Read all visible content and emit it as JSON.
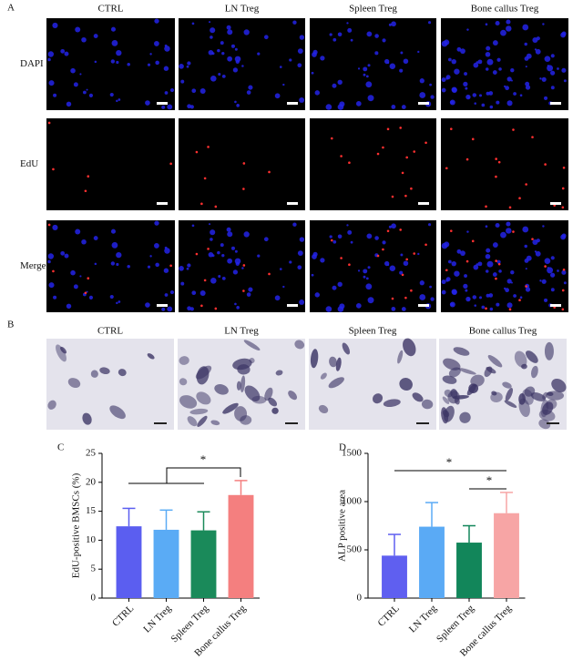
{
  "panel_a": {
    "label": "A",
    "columns": [
      "CTRL",
      "LN Treg",
      "Spleen Treg",
      "Bone callus Treg"
    ],
    "rows": [
      "DAPI",
      "EdU",
      "Merge"
    ]
  },
  "panel_b": {
    "label": "B",
    "columns": [
      "CTRL",
      "LN Treg",
      "Spleen Treg",
      "Bone callus Treg"
    ]
  },
  "chart_data": [
    {
      "type": "bar",
      "panel": "C",
      "ylabel": "EdU-positive BMSCs (%)",
      "categories": [
        "CTRL",
        "LN Treg",
        "Spleen Treg",
        "Bone callus Treg"
      ],
      "values": [
        12.4,
        11.8,
        11.7,
        17.8
      ],
      "errors": [
        3.1,
        3.4,
        3.2,
        2.5
      ],
      "colors": [
        "#5b5ef0",
        "#5aabf5",
        "#1a8a5a",
        "#f47f7f"
      ],
      "ylim": [
        0,
        25
      ],
      "yticks": [
        0,
        5,
        10,
        15,
        20,
        25
      ],
      "annotations": [
        "*"
      ]
    },
    {
      "type": "bar",
      "panel": "D",
      "ylabel": "ALP positive area",
      "categories": [
        "CTRL",
        "LN Treg",
        "Spleen Treg",
        "Bone callus Treg"
      ],
      "values": [
        440,
        740,
        575,
        880
      ],
      "errors": [
        220,
        250,
        175,
        215
      ],
      "colors": [
        "#5f5ff0",
        "#5aaaf5",
        "#12865a",
        "#f7a5a5"
      ],
      "ylim": [
        0,
        1500
      ],
      "yticks": [
        0,
        500,
        1000,
        1500
      ],
      "annotations": [
        "*",
        "*"
      ]
    }
  ]
}
